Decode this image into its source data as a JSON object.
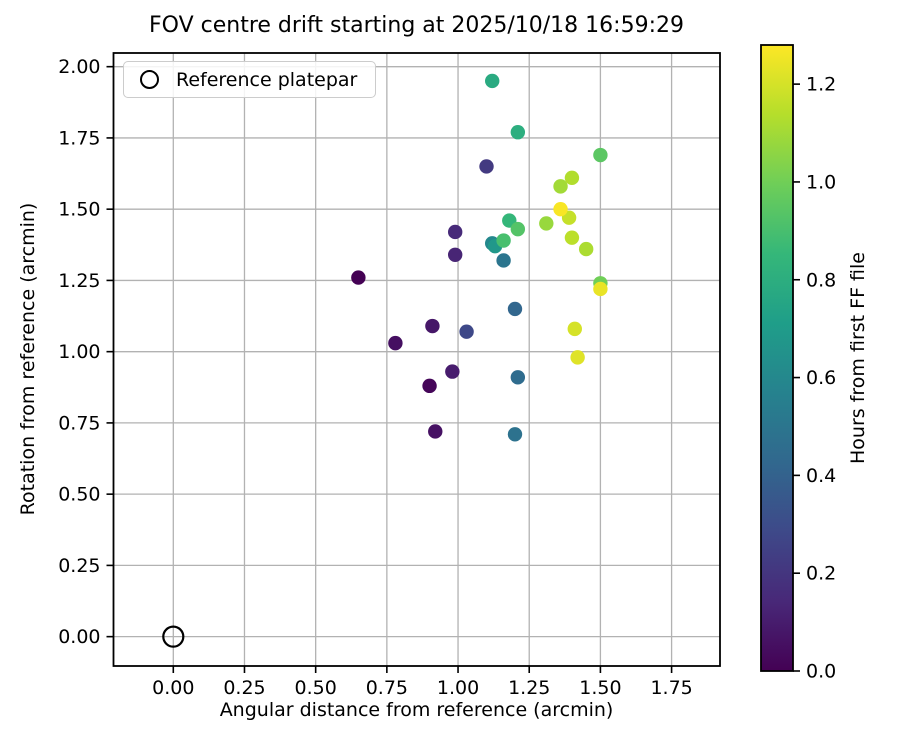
{
  "chart_data": {
    "type": "scatter",
    "title": "FOV centre drift starting at 2025/10/18 16:59:29",
    "xlabel": "Angular distance from reference (arcmin)",
    "ylabel": "Rotation from reference (arcmin)",
    "xlim": [
      -0.21,
      1.92
    ],
    "ylim": [
      -0.103,
      2.048
    ],
    "grid": true,
    "x_tick_values": [
      0.0,
      0.25,
      0.5,
      0.75,
      1.0,
      1.25,
      1.5,
      1.75
    ],
    "x_tick_labels": [
      "0.00",
      "0.25",
      "0.50",
      "0.75",
      "1.00",
      "1.25",
      "1.50",
      "1.75"
    ],
    "y_tick_values": [
      0.0,
      0.25,
      0.5,
      0.75,
      1.0,
      1.25,
      1.5,
      1.75,
      2.0
    ],
    "y_tick_labels": [
      "0.00",
      "0.25",
      "0.50",
      "0.75",
      "1.00",
      "1.25",
      "1.50",
      "1.75",
      "2.00"
    ],
    "series_note": "each point: x = angular distance (arcmin), y = rotation (arcmin), c = hours from first FF file (viridis colour)",
    "points": [
      {
        "x": 0.65,
        "y": 1.26,
        "hours": 0.0
      },
      {
        "x": 0.9,
        "y": 0.88,
        "hours": 0.02
      },
      {
        "x": 0.78,
        "y": 1.03,
        "hours": 0.05
      },
      {
        "x": 0.92,
        "y": 0.72,
        "hours": 0.06
      },
      {
        "x": 0.91,
        "y": 1.09,
        "hours": 0.08
      },
      {
        "x": 0.98,
        "y": 0.93,
        "hours": 0.1
      },
      {
        "x": 0.99,
        "y": 1.34,
        "hours": 0.13
      },
      {
        "x": 0.99,
        "y": 1.42,
        "hours": 0.15
      },
      {
        "x": 1.1,
        "y": 1.65,
        "hours": 0.22
      },
      {
        "x": 1.03,
        "y": 1.07,
        "hours": 0.28
      },
      {
        "x": 1.2,
        "y": 1.15,
        "hours": 0.42
      },
      {
        "x": 1.21,
        "y": 0.91,
        "hours": 0.45
      },
      {
        "x": 1.2,
        "y": 0.71,
        "hours": 0.48
      },
      {
        "x": 1.16,
        "y": 1.32,
        "hours": 0.5
      },
      {
        "x": 1.12,
        "y": 1.38,
        "hours": 0.6
      },
      {
        "x": 1.13,
        "y": 1.37,
        "hours": 0.68
      },
      {
        "x": 1.12,
        "y": 1.95,
        "hours": 0.78
      },
      {
        "x": 1.21,
        "y": 1.77,
        "hours": 0.8
      },
      {
        "x": 1.18,
        "y": 1.46,
        "hours": 0.85
      },
      {
        "x": 1.16,
        "y": 1.39,
        "hours": 0.9
      },
      {
        "x": 1.21,
        "y": 1.43,
        "hours": 0.93
      },
      {
        "x": 1.5,
        "y": 1.69,
        "hours": 0.95
      },
      {
        "x": 1.5,
        "y": 1.24,
        "hours": 1.0
      },
      {
        "x": 1.31,
        "y": 1.45,
        "hours": 1.08
      },
      {
        "x": 1.36,
        "y": 1.58,
        "hours": 1.1
      },
      {
        "x": 1.45,
        "y": 1.36,
        "hours": 1.12
      },
      {
        "x": 1.4,
        "y": 1.61,
        "hours": 1.13
      },
      {
        "x": 1.4,
        "y": 1.4,
        "hours": 1.15
      },
      {
        "x": 1.39,
        "y": 1.47,
        "hours": 1.17
      },
      {
        "x": 1.41,
        "y": 1.08,
        "hours": 1.2
      },
      {
        "x": 1.42,
        "y": 0.98,
        "hours": 1.22
      },
      {
        "x": 1.5,
        "y": 1.22,
        "hours": 1.24
      },
      {
        "x": 1.36,
        "y": 1.5,
        "hours": 1.27
      }
    ],
    "reference_point": {
      "x": 0.0,
      "y": 0.0
    },
    "legend": {
      "position": "upper left",
      "entries": [
        {
          "label": "Reference platepar",
          "marker": "open-circle"
        }
      ]
    },
    "colorbar": {
      "label": "Hours from first FF file",
      "vmin": 0.0,
      "vmax": 1.28,
      "tick_values": [
        0.0,
        0.2,
        0.4,
        0.6,
        0.8,
        1.0,
        1.2
      ],
      "tick_labels": [
        "0.0",
        "0.2",
        "0.4",
        "0.6",
        "0.8",
        "1.0",
        "1.2"
      ],
      "colormap": "viridis"
    }
  },
  "colors": {
    "background": "#ffffff",
    "grid": "#b2b2b2",
    "spine": "#000000",
    "text": "#000000",
    "legend_border": "#cccccc",
    "viridis_stops": [
      "#440154",
      "#482878",
      "#3e4989",
      "#31688e",
      "#26828e",
      "#1f9e89",
      "#35b779",
      "#6ece58",
      "#b5de2b",
      "#fde725"
    ]
  }
}
